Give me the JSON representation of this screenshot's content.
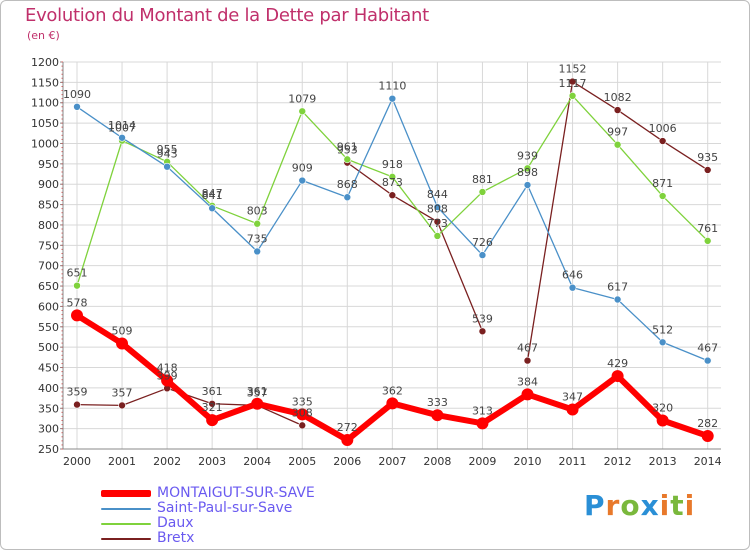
{
  "header": {
    "title": "Evolution du Montant de la Dette par Habitant",
    "unit": "(en €)"
  },
  "logo": {
    "letters": [
      "P",
      "r",
      "o",
      "x",
      "i",
      "t",
      "i"
    ],
    "colors": [
      "#2a8fd6",
      "#e8792b",
      "#7ab83c",
      "#2a8fd6",
      "#e8792b",
      "#7ab83c",
      "#e8792b"
    ]
  },
  "chart_data": {
    "type": "line",
    "title": "Evolution du Montant de la Dette par Habitant",
    "subtitle": "(en €)",
    "x": [
      "2000",
      "2001",
      "2002",
      "2003",
      "2004",
      "2005",
      "2006",
      "2007",
      "2008",
      "2009",
      "2010",
      "2011",
      "2012",
      "2013",
      "2014"
    ],
    "ylim": [
      250,
      1200
    ],
    "yticks": [
      250,
      300,
      350,
      400,
      450,
      500,
      550,
      600,
      650,
      700,
      750,
      800,
      850,
      900,
      950,
      1000,
      1050,
      1100,
      1150,
      1200
    ],
    "grid": true,
    "legend_position": "bottom-left",
    "series": [
      {
        "name": "Bretx",
        "color": "#7a2020",
        "values": [
          359,
          357,
          399,
          361,
          357,
          308,
          953,
          873,
          808,
          539,
          467,
          1152,
          1082,
          1006,
          935
        ],
        "breaks": [
          [
            5,
            6
          ],
          [
            9,
            10
          ]
        ],
        "labels": [
          "359",
          "357",
          "399",
          "361",
          "357",
          "308",
          "953",
          "873",
          "808",
          "539",
          "467",
          "1152",
          "1082",
          "1006",
          "935"
        ]
      },
      {
        "name": "Daux",
        "color": "#7fd23c",
        "values": [
          651,
          1007,
          955,
          847,
          803,
          1079,
          961,
          918,
          773,
          881,
          939,
          1117,
          997,
          871,
          761
        ],
        "labels": [
          "651",
          "1007",
          "955",
          "847",
          "803",
          "1079",
          "961",
          "918",
          "773",
          "881",
          "939",
          "1117",
          "997",
          "871",
          "761"
        ]
      },
      {
        "name": "Saint-Paul-sur-Save",
        "color": "#4a90c8",
        "values": [
          1090,
          1014,
          943,
          841,
          735,
          909,
          868,
          1110,
          844,
          726,
          898,
          646,
          617,
          512,
          467
        ],
        "labels": [
          "1090",
          "1014",
          "943",
          "841",
          "735",
          "909",
          "868",
          "1110",
          "844",
          "726",
          "898",
          "646",
          "617",
          "512",
          "467"
        ]
      },
      {
        "name": "MONTAIGUT-SUR-SAVE",
        "color": "#ff0000",
        "values": [
          578,
          509,
          418,
          321,
          361,
          335,
          272,
          362,
          333,
          313,
          384,
          347,
          429,
          320,
          282
        ],
        "labels": [
          "578",
          "509",
          "418",
          "321",
          "361",
          "335",
          "272",
          "362",
          "333",
          "313",
          "384",
          "347",
          "429",
          "320",
          "282"
        ]
      }
    ],
    "legend": [
      {
        "name": "MONTAIGUT-SUR-SAVE",
        "color": "#ff0000",
        "thick": true
      },
      {
        "name": "Saint-Paul-sur-Save",
        "color": "#4a90c8",
        "thick": false
      },
      {
        "name": "Daux",
        "color": "#7fd23c",
        "thick": false
      },
      {
        "name": "Bretx",
        "color": "#7a2020",
        "thick": false
      }
    ]
  }
}
